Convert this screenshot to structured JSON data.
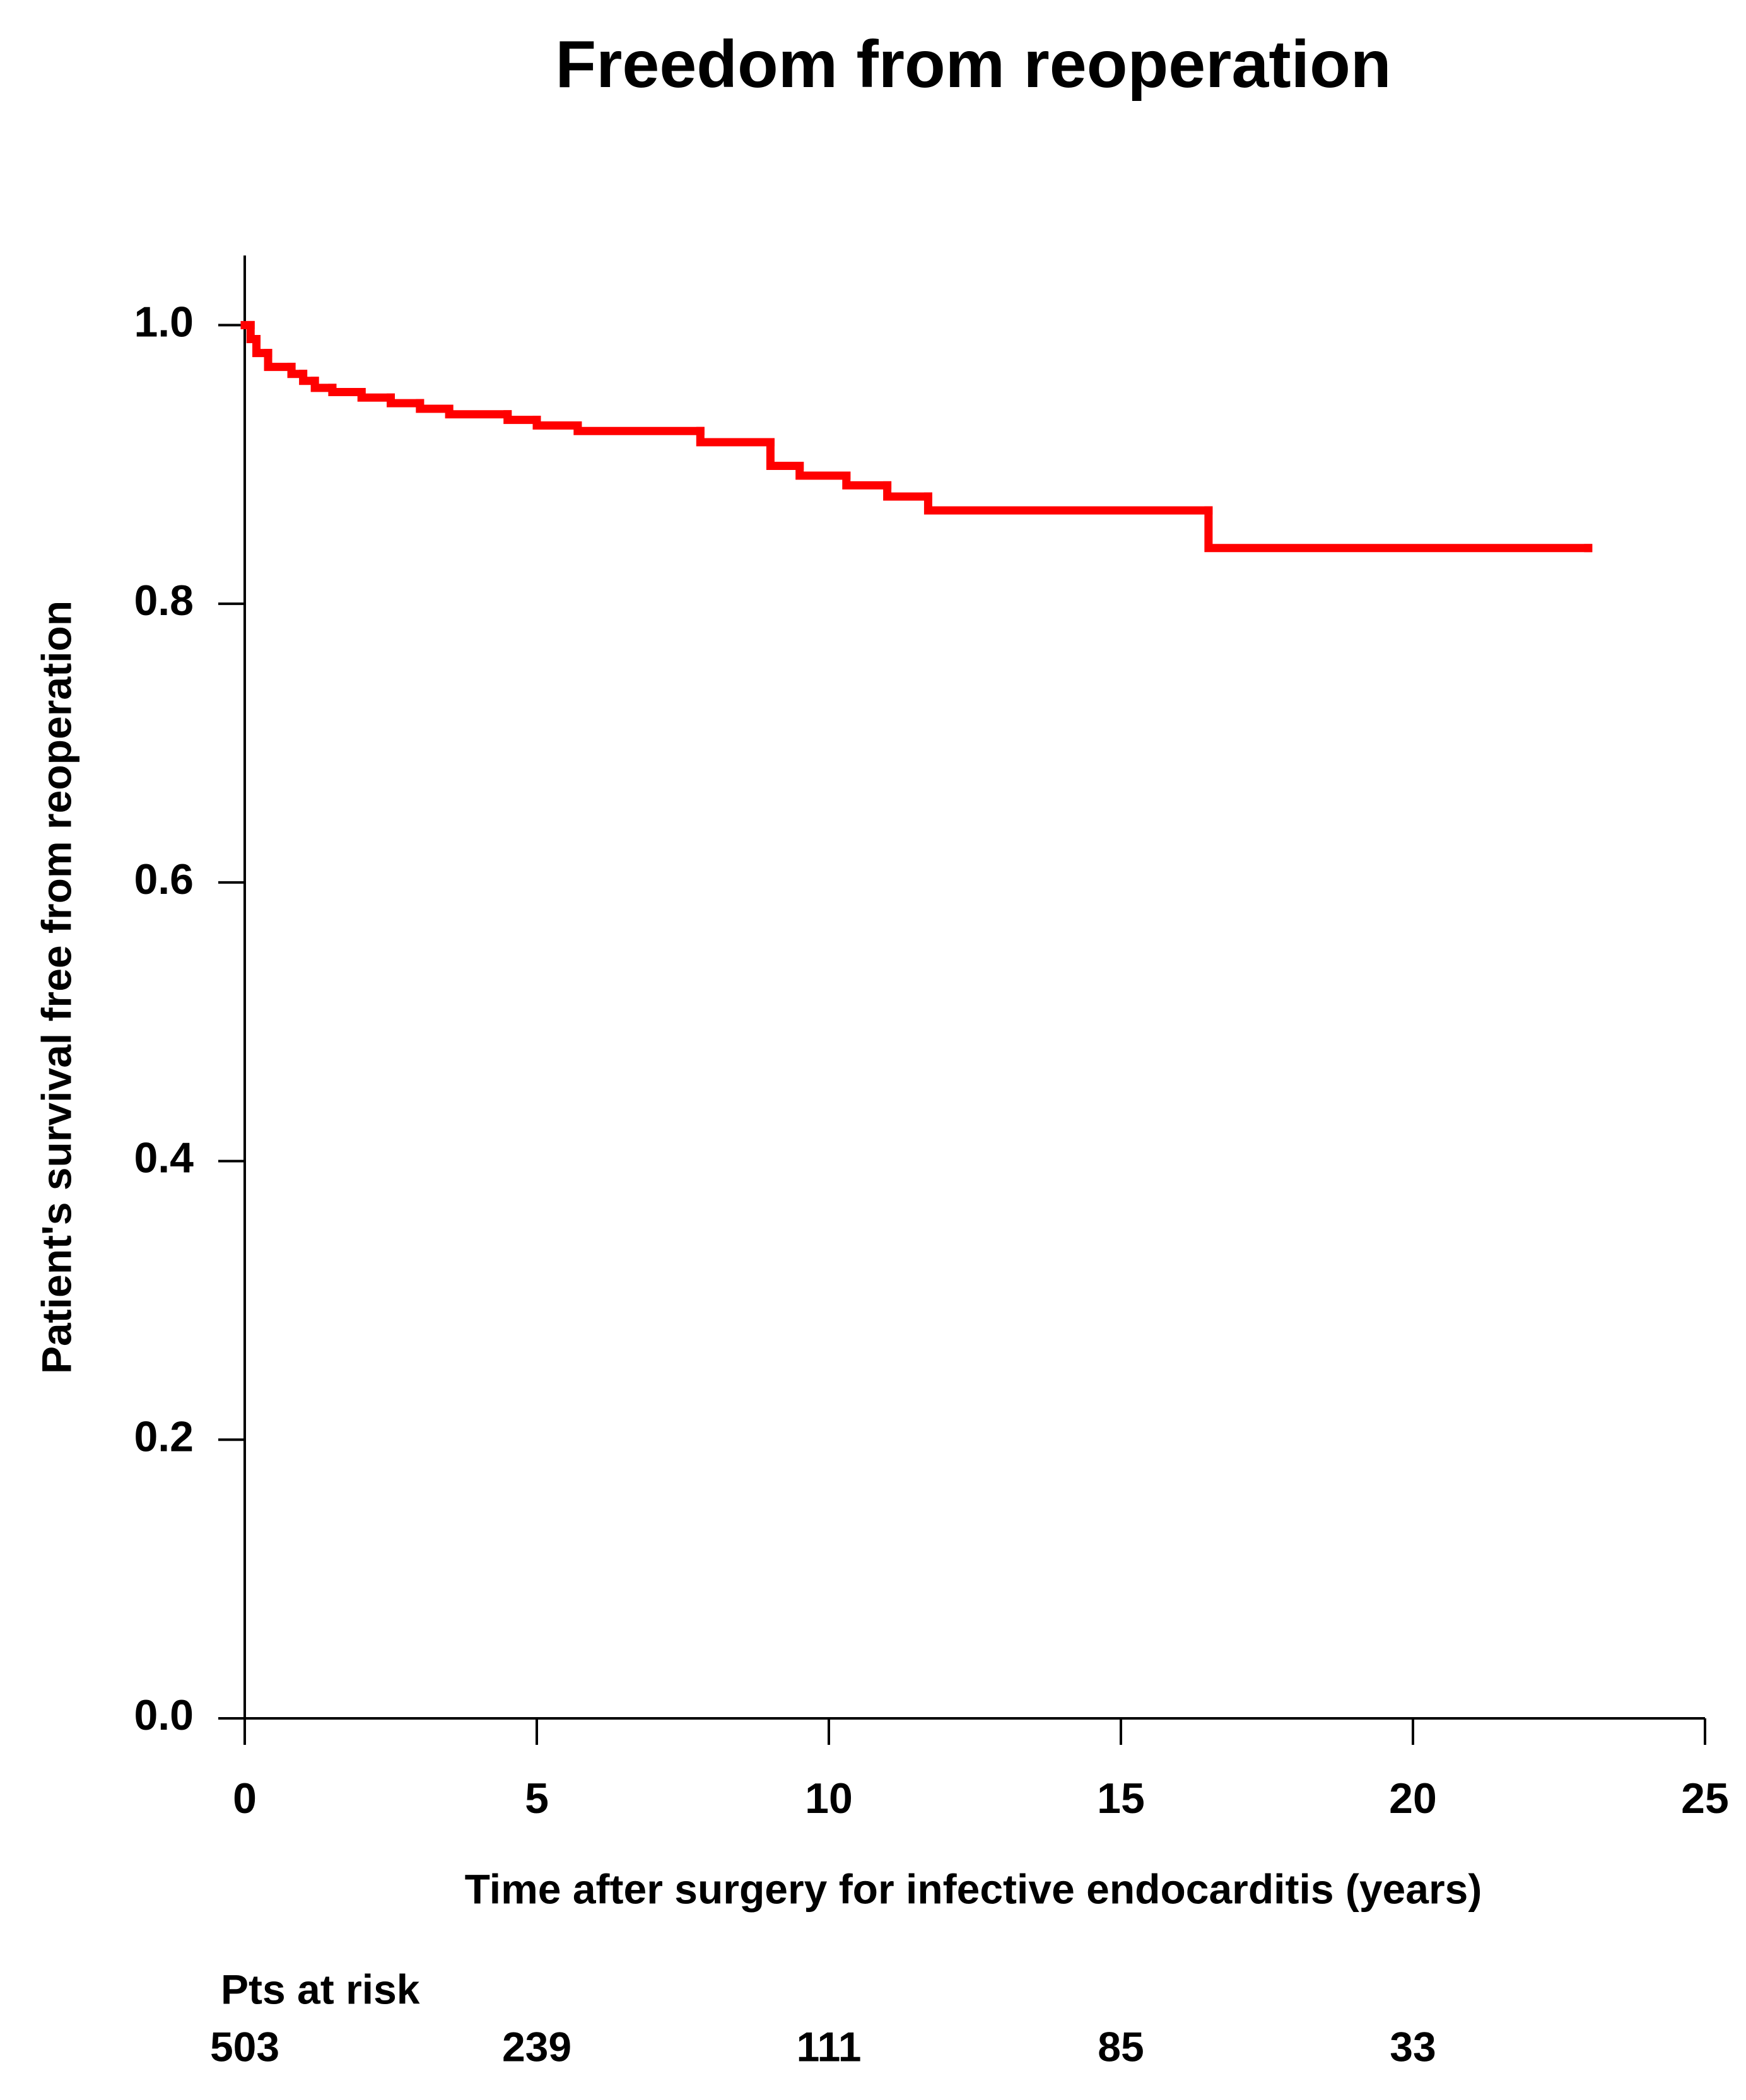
{
  "chart_data": {
    "type": "step",
    "title": "Freedom from reoperation",
    "x_label": "Time after surgery for infective endocarditis (years)",
    "y_label": "Patient's survival free from reoperation",
    "x": [
      0,
      0.1,
      0.2,
      0.4,
      0.8,
      1.0,
      1.2,
      1.5,
      2.0,
      2.5,
      3.0,
      3.5,
      4.5,
      5.0,
      5.7,
      7.8,
      9.0,
      9.5,
      10.3,
      11.0,
      11.7,
      16.5,
      23.0
    ],
    "values": [
      1.0,
      0.99,
      0.98,
      0.97,
      0.965,
      0.96,
      0.955,
      0.952,
      0.948,
      0.944,
      0.94,
      0.936,
      0.932,
      0.928,
      0.924,
      0.916,
      0.899,
      0.892,
      0.885,
      0.877,
      0.867,
      0.84,
      0.84
    ],
    "color": "#ff0000",
    "xlim": [
      0,
      25
    ],
    "xticks": [
      0,
      5,
      10,
      15,
      20,
      25
    ],
    "ylim": [
      0,
      1.05
    ],
    "yticks": [
      {
        "value": 0,
        "label": "0.0"
      },
      {
        "value": 0.2,
        "label": "0.2"
      },
      {
        "value": 0.4,
        "label": "0.4"
      },
      {
        "value": 0.6,
        "label": "0.6"
      },
      {
        "value": 0.8,
        "label": "0.8"
      },
      {
        "value": 1,
        "label": "1.0"
      }
    ],
    "risk_table": {
      "label": "Pts at risk",
      "x": [
        0,
        5,
        10,
        15,
        20
      ],
      "values": [
        503,
        239,
        111,
        85,
        33
      ]
    }
  }
}
